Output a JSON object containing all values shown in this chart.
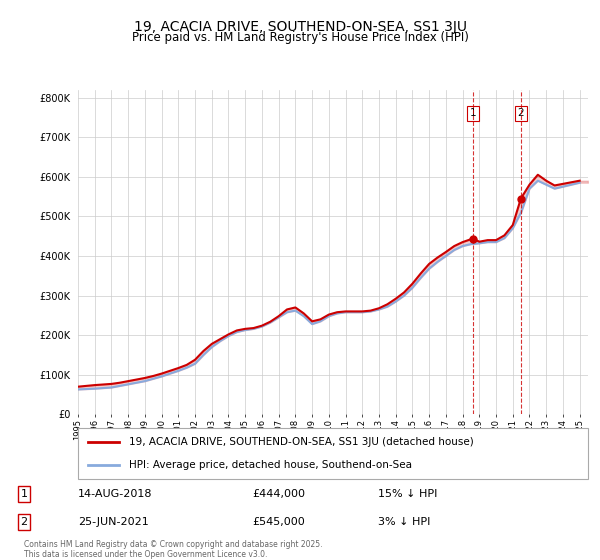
{
  "title_line1": "19, ACACIA DRIVE, SOUTHEND-ON-SEA, SS1 3JU",
  "title_line2": "Price paid vs. HM Land Registry's House Price Index (HPI)",
  "legend_label1": "19, ACACIA DRIVE, SOUTHEND-ON-SEA, SS1 3JU (detached house)",
  "legend_label2": "HPI: Average price, detached house, Southend-on-Sea",
  "annotation1_date": "14-AUG-2018",
  "annotation1_price": "£444,000",
  "annotation1_hpi": "15% ↓ HPI",
  "annotation2_date": "25-JUN-2021",
  "annotation2_price": "£545,000",
  "annotation2_hpi": "3% ↓ HPI",
  "footer": "Contains HM Land Registry data © Crown copyright and database right 2025.\nThis data is licensed under the Open Government Licence v3.0.",
  "sale1_x": 2018.617,
  "sale1_y": 444000,
  "sale2_x": 2021.486,
  "sale2_y": 545000,
  "color_sales": "#cc0000",
  "color_hpi": "#88aadd",
  "color_vline": "#cc0000",
  "ylim": [
    0,
    820000
  ],
  "xlim_start": 1995,
  "xlim_end": 2025.5,
  "background_color": "#ffffff",
  "grid_color": "#cccccc",
  "hpi_data": [
    [
      1995,
      63000
    ],
    [
      1995.5,
      64000
    ],
    [
      1996,
      65000
    ],
    [
      1996.5,
      66500
    ],
    [
      1997,
      68000
    ],
    [
      1997.5,
      72000
    ],
    [
      1998,
      76000
    ],
    [
      1998.5,
      80000
    ],
    [
      1999,
      84000
    ],
    [
      1999.5,
      90000
    ],
    [
      2000,
      96000
    ],
    [
      2000.5,
      103000
    ],
    [
      2001,
      110000
    ],
    [
      2001.5,
      118000
    ],
    [
      2002,
      128000
    ],
    [
      2002.5,
      150000
    ],
    [
      2003,
      170000
    ],
    [
      2003.5,
      185000
    ],
    [
      2004,
      198000
    ],
    [
      2004.5,
      208000
    ],
    [
      2005,
      213000
    ],
    [
      2005.5,
      216000
    ],
    [
      2006,
      222000
    ],
    [
      2006.5,
      232000
    ],
    [
      2007,
      245000
    ],
    [
      2007.5,
      258000
    ],
    [
      2008,
      262000
    ],
    [
      2008.5,
      248000
    ],
    [
      2009,
      228000
    ],
    [
      2009.5,
      235000
    ],
    [
      2010,
      248000
    ],
    [
      2010.5,
      255000
    ],
    [
      2011,
      258000
    ],
    [
      2011.5,
      258000
    ],
    [
      2012,
      258000
    ],
    [
      2012.5,
      260000
    ],
    [
      2013,
      265000
    ],
    [
      2013.5,
      272000
    ],
    [
      2014,
      285000
    ],
    [
      2014.5,
      300000
    ],
    [
      2015,
      320000
    ],
    [
      2015.5,
      345000
    ],
    [
      2016,
      368000
    ],
    [
      2016.5,
      385000
    ],
    [
      2017,
      400000
    ],
    [
      2017.5,
      415000
    ],
    [
      2018,
      425000
    ],
    [
      2018.5,
      430000
    ],
    [
      2019,
      432000
    ],
    [
      2019.5,
      435000
    ],
    [
      2020,
      435000
    ],
    [
      2020.5,
      445000
    ],
    [
      2021,
      470000
    ],
    [
      2021.5,
      510000
    ],
    [
      2022,
      570000
    ],
    [
      2022.5,
      590000
    ],
    [
      2023,
      580000
    ],
    [
      2023.5,
      570000
    ],
    [
      2024,
      575000
    ],
    [
      2024.5,
      580000
    ],
    [
      2025,
      585000
    ]
  ],
  "sales_data": [
    [
      1995,
      70000
    ],
    [
      1995.5,
      72000
    ],
    [
      1996,
      74000
    ],
    [
      1996.5,
      75500
    ],
    [
      1997,
      77000
    ],
    [
      1997.5,
      80000
    ],
    [
      1998,
      84000
    ],
    [
      1998.5,
      88000
    ],
    [
      1999,
      92000
    ],
    [
      1999.5,
      97000
    ],
    [
      2000,
      103000
    ],
    [
      2000.5,
      110000
    ],
    [
      2001,
      117000
    ],
    [
      2001.5,
      125000
    ],
    [
      2002,
      138000
    ],
    [
      2002.5,
      160000
    ],
    [
      2003,
      178000
    ],
    [
      2003.5,
      190000
    ],
    [
      2004,
      202000
    ],
    [
      2004.5,
      212000
    ],
    [
      2005,
      216000
    ],
    [
      2005.5,
      218000
    ],
    [
      2006,
      224000
    ],
    [
      2006.5,
      234000
    ],
    [
      2007,
      248000
    ],
    [
      2007.5,
      265000
    ],
    [
      2008,
      270000
    ],
    [
      2008.5,
      255000
    ],
    [
      2009,
      235000
    ],
    [
      2009.5,
      240000
    ],
    [
      2010,
      252000
    ],
    [
      2010.5,
      258000
    ],
    [
      2011,
      260000
    ],
    [
      2011.5,
      260000
    ],
    [
      2012,
      260000
    ],
    [
      2012.5,
      262000
    ],
    [
      2013,
      268000
    ],
    [
      2013.5,
      278000
    ],
    [
      2014,
      292000
    ],
    [
      2014.5,
      308000
    ],
    [
      2015,
      330000
    ],
    [
      2015.5,
      356000
    ],
    [
      2016,
      380000
    ],
    [
      2016.5,
      396000
    ],
    [
      2017,
      410000
    ],
    [
      2017.5,
      425000
    ],
    [
      2018,
      435000
    ],
    [
      2018.617,
      444000
    ],
    [
      2019,
      436000
    ],
    [
      2019.5,
      440000
    ],
    [
      2020,
      440000
    ],
    [
      2020.5,
      452000
    ],
    [
      2021,
      478000
    ],
    [
      2021.486,
      545000
    ],
    [
      2022,
      580000
    ],
    [
      2022.5,
      605000
    ],
    [
      2023,
      590000
    ],
    [
      2023.5,
      578000
    ],
    [
      2024,
      582000
    ],
    [
      2024.5,
      586000
    ],
    [
      2025,
      590000
    ]
  ]
}
